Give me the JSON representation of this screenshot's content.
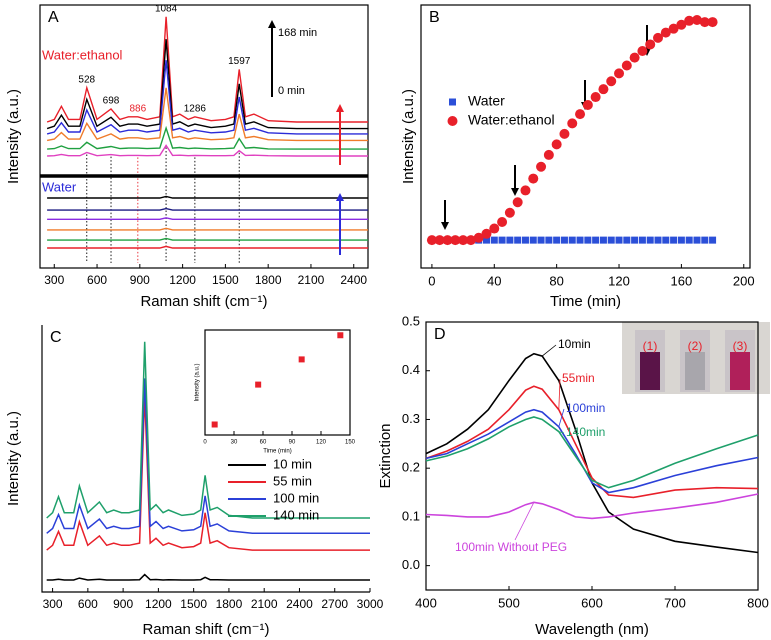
{
  "chart_data": [
    {
      "type": "line",
      "label": "A",
      "xlabel": "Raman shift (cm⁻¹)",
      "ylabel": "Intensity (a.u.)",
      "x": [
        250,
        300,
        350,
        400,
        480,
        528,
        600,
        698,
        760,
        820,
        886,
        950,
        1040,
        1084,
        1130,
        1180,
        1240,
        1286,
        1400,
        1500,
        1560,
        1597,
        1640,
        1700,
        1800,
        2000,
        2300,
        2500
      ],
      "xlim": [
        200,
        2500
      ],
      "xticks": [
        300,
        600,
        900,
        1200,
        1500,
        1800,
        2100,
        2400
      ],
      "ylim": [
        0,
        100
      ],
      "groups": [
        {
          "name": "Water:ethanol",
          "color": "#e8202a"
        },
        {
          "name": "Water",
          "color": "#2b2bd8"
        }
      ],
      "time_arrow_labels": [
        "168 min",
        "0 min"
      ],
      "peaks": [
        528,
        698,
        886,
        1084,
        1286,
        1597
      ],
      "peak_colors": [
        "#000000",
        "#000000",
        "#e8202a",
        "#000000",
        "#000000",
        "#000000"
      ],
      "series": [
        {
          "color": "#e8202a",
          "values": [
            55.5,
            56.5,
            61.5,
            56.5,
            56.5,
            68.5,
            56.5,
            60.5,
            56.5,
            57.5,
            57.5,
            56.5,
            57.5,
            95.5,
            57.5,
            58.5,
            56.5,
            57.5,
            56,
            56.5,
            57.5,
            75.5,
            57.5,
            58.5,
            56,
            55.5,
            55.5,
            55.5
          ]
        },
        {
          "color": "#000000",
          "values": [
            53,
            53.9,
            58.1,
            53.9,
            53.9,
            64.1,
            53.9,
            57.3,
            53.9,
            54.7,
            54.7,
            53.9,
            54.7,
            87,
            54.7,
            55.6,
            53.9,
            54.7,
            53.4,
            53.9,
            54.7,
            70,
            54.7,
            55.6,
            53.4,
            53,
            53,
            53
          ]
        },
        {
          "color": "#2b2bd8",
          "values": [
            51,
            51.7,
            55.2,
            51.7,
            51.7,
            60.1,
            51.7,
            54.5,
            51.7,
            52.4,
            52.4,
            51.7,
            52.4,
            79,
            52.4,
            53.1,
            51.7,
            52.4,
            51.4,
            51.7,
            52.4,
            65,
            52.4,
            53.1,
            51.4,
            51,
            51,
            51
          ]
        },
        {
          "color": "#f07b2a",
          "values": [
            48.5,
            49,
            51.5,
            49,
            49,
            55,
            49,
            51,
            49,
            49.5,
            49.5,
            49,
            49.5,
            68.5,
            49.5,
            50,
            49,
            49.5,
            48.8,
            49,
            49.5,
            58.5,
            49.5,
            50,
            48.8,
            48.5,
            48.5,
            48.5
          ]
        },
        {
          "color": "#1fa040",
          "values": [
            45.2,
            45.4,
            46.4,
            45.4,
            45.4,
            47.8,
            45.4,
            46.2,
            45.4,
            45.6,
            45.6,
            45.4,
            45.6,
            53.2,
            45.6,
            45.8,
            45.4,
            45.6,
            45.3,
            45.4,
            45.6,
            49.2,
            45.6,
            45.8,
            45.3,
            45.2,
            45.2,
            45.2
          ]
        },
        {
          "color": "#e040c0",
          "values": [
            42.6,
            42.7,
            43.2,
            42.7,
            42.7,
            43.9,
            42.7,
            43.1,
            42.7,
            42.8,
            42.8,
            42.7,
            42.8,
            46.6,
            42.8,
            42.9,
            42.7,
            42.8,
            42.7,
            42.7,
            42.8,
            44.6,
            42.8,
            42.9,
            42.7,
            42.6,
            42.6,
            42.6
          ]
        },
        {
          "color": "#000000",
          "values": [
            26.6,
            26.6,
            26.6,
            26.6,
            26.6,
            26.6,
            26.6,
            26.6,
            26.6,
            26.6,
            26.6,
            26.6,
            26.6,
            27.2,
            26.6,
            26.6,
            26.6,
            26.6,
            26.6,
            26.6,
            26.6,
            26.6,
            26.6,
            26.6,
            26.6,
            26.6,
            26.6,
            26.6
          ]
        },
        {
          "color": "#1a1a80",
          "values": [
            22,
            22,
            22,
            22,
            22,
            22,
            22,
            22,
            22,
            22,
            22,
            22,
            22,
            22.6,
            22,
            22,
            22,
            22,
            22,
            22,
            22,
            22,
            22,
            22,
            22,
            22,
            22,
            22
          ]
        },
        {
          "color": "#8a2be2",
          "values": [
            18.5,
            18.5,
            18.5,
            18.5,
            18.5,
            18.5,
            18.5,
            18.5,
            18.5,
            18.5,
            18.5,
            18.5,
            18.5,
            19.1,
            18.5,
            18.5,
            18.5,
            18.5,
            18.5,
            18.5,
            18.5,
            18.5,
            18.5,
            18.5,
            18.5,
            18.5,
            18.5,
            18.5
          ]
        },
        {
          "color": "#f07b2a",
          "values": [
            14.5,
            14.5,
            14.5,
            14.5,
            14.5,
            14.5,
            14.5,
            14.5,
            14.5,
            14.5,
            14.5,
            14.5,
            14.5,
            15.1,
            14.5,
            14.5,
            14.5,
            14.5,
            14.5,
            14.5,
            14.5,
            14.5,
            14.5,
            14.5,
            14.5,
            14.5,
            14.5,
            14.5
          ]
        },
        {
          "color": "#1fa040",
          "values": [
            10.6,
            10.6,
            10.6,
            10.6,
            10.6,
            10.6,
            10.6,
            10.6,
            10.6,
            10.6,
            10.6,
            10.6,
            10.6,
            11.2,
            10.6,
            10.6,
            10.6,
            10.6,
            10.6,
            10.6,
            10.6,
            10.6,
            10.6,
            10.6,
            10.6,
            10.6,
            10.6,
            10.6
          ]
        },
        {
          "color": "#e8202a",
          "values": [
            7.6,
            7.6,
            7.6,
            7.6,
            7.6,
            7.6,
            7.6,
            7.6,
            7.6,
            7.6,
            7.6,
            7.6,
            7.6,
            8.2,
            7.6,
            7.6,
            7.6,
            7.6,
            7.6,
            7.6,
            7.6,
            7.6,
            7.6,
            7.6,
            7.6,
            7.6,
            7.6,
            7.6
          ]
        }
      ]
    },
    {
      "type": "scatter",
      "label": "B",
      "xlabel": "Time (min)",
      "ylabel": "Intensity (a.u.)",
      "x": [
        0,
        5,
        10,
        15,
        20,
        25,
        30,
        35,
        40,
        45,
        50,
        55,
        60,
        65,
        70,
        75,
        80,
        85,
        90,
        95,
        100,
        105,
        110,
        115,
        120,
        125,
        130,
        135,
        140,
        145,
        150,
        155,
        160,
        165,
        170,
        175,
        180
      ],
      "xlim": [
        -7,
        204
      ],
      "xticks": [
        0,
        40,
        80,
        120,
        160,
        200
      ],
      "ylim": [
        0,
        100
      ],
      "series": [
        {
          "name": "Water",
          "color": "#2b4fd8",
          "marker": "square",
          "values": [
            10.6,
            10.6,
            10.6,
            10.6,
            10.6,
            10.6,
            10.6,
            10.6,
            10.6,
            10.6,
            10.6,
            10.6,
            10.6,
            10.6,
            10.6,
            10.6,
            10.6,
            10.6,
            10.6,
            10.6,
            10.6,
            10.6,
            10.6,
            10.6,
            10.6,
            10.6,
            10.6,
            10.6,
            10.6,
            10.6,
            10.6,
            10.6,
            10.6,
            10.6,
            10.6,
            10.6,
            10.6
          ]
        },
        {
          "name": "Water:ethanol",
          "color": "#e8202a",
          "marker": "circle",
          "values": [
            10.6,
            10.6,
            10.6,
            10.6,
            10.6,
            10.6,
            11.5,
            13,
            15,
            17.5,
            21,
            25,
            29.5,
            34,
            38.5,
            43,
            47,
            51,
            55,
            58.5,
            62,
            65,
            68,
            71,
            74,
            77,
            80,
            82.5,
            85,
            87.5,
            89.5,
            91,
            92.5,
            94,
            94.3,
            93.5,
            93.5
          ]
        }
      ]
    },
    {
      "type": "line",
      "label": "C",
      "xlabel": "Raman shift (cm⁻¹)",
      "ylabel": "Intensity (a.u.)",
      "x": [
        250,
        300,
        350,
        400,
        480,
        528,
        600,
        698,
        760,
        820,
        886,
        950,
        1040,
        1084,
        1130,
        1180,
        1240,
        1286,
        1400,
        1500,
        1560,
        1597,
        1640,
        1700,
        1800,
        2000,
        2300,
        2600,
        3000
      ],
      "xlim": [
        210,
        3000
      ],
      "xticks": [
        300,
        600,
        900,
        1200,
        1500,
        1800,
        2100,
        2400,
        2700,
        3000
      ],
      "ylim": [
        0,
        100
      ],
      "series": [
        {
          "name": "10 min",
          "color": "#000000",
          "values": [
            4.5,
            4.5,
            4.8,
            4.5,
            4.5,
            5.2,
            4.5,
            4.8,
            4.5,
            4.5,
            4.5,
            4.5,
            4.6,
            6.5,
            4.6,
            4.7,
            4.5,
            4.6,
            4.5,
            4.5,
            4.6,
            5.5,
            4.6,
            4.6,
            4.5,
            4.5,
            4.5,
            4.5,
            4.5
          ]
        },
        {
          "name": "55 min",
          "color": "#e8202a",
          "values": [
            15.7,
            17.5,
            22.7,
            17.5,
            17.5,
            26.3,
            17.5,
            21,
            17.5,
            18.3,
            17.5,
            17.5,
            18.3,
            73.7,
            18.3,
            20.1,
            17.5,
            18.3,
            16.6,
            17,
            18.3,
            29.7,
            18.3,
            19.2,
            16.6,
            15.7,
            15.7,
            15.7,
            15.7
          ]
        },
        {
          "name": "100 min",
          "color": "#2b40d8",
          "values": [
            22,
            23.8,
            29,
            23.8,
            23.8,
            32.6,
            23.8,
            27.3,
            23.8,
            24.6,
            23.8,
            23.8,
            24.6,
            80,
            24.6,
            26.4,
            23.8,
            24.6,
            22.9,
            23.3,
            24.6,
            36,
            24.6,
            25.5,
            22.9,
            22,
            22,
            22,
            22
          ]
        },
        {
          "name": "140 min",
          "color": "#1fa06b",
          "values": [
            27.7,
            29.7,
            35.7,
            29.7,
            29.7,
            39.7,
            29.7,
            33.7,
            29.7,
            30.7,
            29.7,
            29.7,
            30.7,
            93.7,
            30.7,
            32.7,
            29.7,
            30.7,
            28.7,
            29.2,
            30.7,
            43.7,
            30.7,
            31.7,
            28.7,
            27.7,
            27.7,
            27.7,
            27.7
          ]
        }
      ]
    },
    {
      "type": "scatter",
      "xlabel": "Time (min)",
      "ylabel": "Intensity (a.u.)",
      "x": [
        10,
        55,
        100,
        140
      ],
      "xlim": [
        0,
        150
      ],
      "xticks": [
        0,
        30,
        60,
        90,
        120,
        150
      ],
      "ylim": [
        0,
        100
      ],
      "series": [
        {
          "color": "#e8202a",
          "marker": "square",
          "values": [
            10,
            48,
            72,
            95
          ]
        }
      ]
    },
    {
      "type": "line",
      "label": "D",
      "xlabel": "Wavelength (nm)",
      "ylabel": "Extinction",
      "x": [
        400,
        425,
        450,
        475,
        500,
        520,
        530,
        540,
        560,
        580,
        600,
        620,
        650,
        700,
        750,
        800
      ],
      "xlim": [
        400,
        800
      ],
      "xticks": [
        400,
        500,
        600,
        700,
        800
      ],
      "ylim": [
        -0.05,
        0.5
      ],
      "yticks": [
        {
          "value": 0,
          "label": "0.0"
        },
        0.1,
        0.2,
        0.3,
        0.4,
        0.5
      ],
      "inset_labels": [
        "(1)",
        "(2)",
        "(3)"
      ],
      "series": [
        {
          "name": "10min",
          "color": "#000000",
          "values": [
            0.23,
            0.25,
            0.28,
            0.32,
            0.38,
            0.425,
            0.435,
            0.43,
            0.38,
            0.28,
            0.17,
            0.11,
            0.075,
            0.05,
            0.038,
            0.027
          ]
        },
        {
          "name": "55min",
          "color": "#e8202a",
          "values": [
            0.22,
            0.235,
            0.255,
            0.28,
            0.32,
            0.36,
            0.368,
            0.362,
            0.32,
            0.25,
            0.18,
            0.145,
            0.14,
            0.155,
            0.16,
            0.158
          ]
        },
        {
          "name": "100min",
          "color": "#2b40d8",
          "values": [
            0.22,
            0.23,
            0.25,
            0.27,
            0.295,
            0.315,
            0.32,
            0.315,
            0.285,
            0.23,
            0.17,
            0.15,
            0.16,
            0.185,
            0.205,
            0.222
          ]
        },
        {
          "name": "140min",
          "color": "#1fa06b",
          "values": [
            0.215,
            0.225,
            0.24,
            0.26,
            0.285,
            0.3,
            0.305,
            0.3,
            0.275,
            0.225,
            0.175,
            0.16,
            0.175,
            0.21,
            0.24,
            0.268
          ]
        },
        {
          "name": "100min Without PEG",
          "color": "#cc44dd",
          "values": [
            0.105,
            0.103,
            0.1,
            0.1,
            0.11,
            0.125,
            0.13,
            0.127,
            0.115,
            0.1,
            0.097,
            0.1,
            0.108,
            0.118,
            0.13,
            0.147
          ]
        }
      ]
    }
  ]
}
